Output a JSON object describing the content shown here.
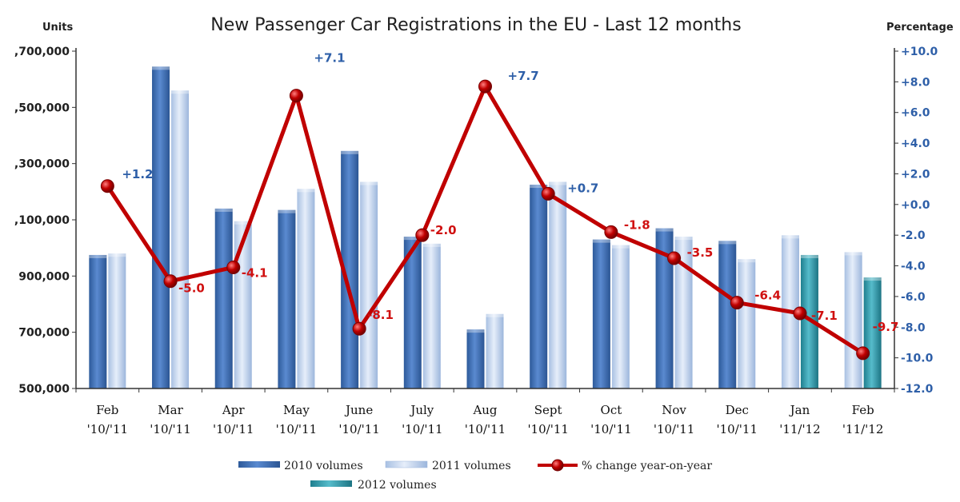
{
  "chart_data": {
    "type": "bar",
    "title": "New Passenger Car Registrations in the EU - Last 12 months",
    "ylabel": "Units",
    "y2label": "Percentage",
    "ylim": [
      500000,
      1700000
    ],
    "y2lim": [
      -12,
      10
    ],
    "yticks": [
      "500,000",
      "700,000",
      "900,000",
      ",100,000",
      ",300,000",
      ",500,000",
      ",700,000"
    ],
    "y2ticks": [
      "-12.0",
      "-10.0",
      "-8.0",
      "-6.0",
      "-4.0",
      "-2.0",
      "+0.0",
      "+2.0",
      "+4.0",
      "+6.0",
      "+8.0",
      "+10.0"
    ],
    "categories": [
      {
        "month": "Feb",
        "years": "'10/'11"
      },
      {
        "month": "Mar",
        "years": "'10/'11"
      },
      {
        "month": "Apr",
        "years": "'10/'11"
      },
      {
        "month": "May",
        "years": "'10/'11"
      },
      {
        "month": "June",
        "years": "'10/'11"
      },
      {
        "month": "July",
        "years": "'10/'11"
      },
      {
        "month": "Aug",
        "years": "'10/'11"
      },
      {
        "month": "Sept",
        "years": "'10/'11"
      },
      {
        "month": "Oct",
        "years": "'10/'11"
      },
      {
        "month": "Nov",
        "years": "'10/'11"
      },
      {
        "month": "Dec",
        "years": "'10/'11"
      },
      {
        "month": "Jan",
        "years": "'11/'12"
      },
      {
        "month": "Feb",
        "years": "'11/'12"
      }
    ],
    "series": [
      {
        "name": "2010 volumes",
        "values": [
          975000,
          1645000,
          1140000,
          1135000,
          1345000,
          1040000,
          710000,
          1225000,
          1030000,
          1070000,
          1025000,
          null,
          null
        ]
      },
      {
        "name": "2011 volumes",
        "values": [
          980000,
          1560000,
          1095000,
          1210000,
          1235000,
          1015000,
          765000,
          1235000,
          1010000,
          1040000,
          960000,
          1045000,
          985000
        ]
      },
      {
        "name": "2012 volumes",
        "values": [
          null,
          null,
          null,
          null,
          null,
          null,
          null,
          null,
          null,
          null,
          null,
          975000,
          895000
        ]
      },
      {
        "name": "% change year-on-year",
        "values": [
          1.2,
          -5.0,
          -4.1,
          7.1,
          -8.1,
          -2.0,
          7.7,
          0.7,
          -1.8,
          -3.5,
          -6.4,
          -7.1,
          -9.7
        ]
      }
    ],
    "data_labels": [
      "+1.2",
      "-5.0",
      "-4.1",
      "+7.1",
      "-8.1",
      "-2.0",
      "+7.7",
      "+0.7",
      "-1.8",
      "-3.5",
      "-6.4",
      "-7.1",
      "-9.7"
    ],
    "legend": {
      "position": "bottom",
      "items": [
        "2010 volumes",
        "2011 volumes",
        "% change year-on-year",
        "2012 volumes"
      ]
    },
    "colors": {
      "v2010": "#3d6fb5",
      "v2011": "#c0d2ec",
      "v2012": "#3aa0b0",
      "line": "#c00000",
      "pos_label": "#2e5fa8",
      "neg_label": "#d01010",
      "axis": "#333333",
      "grid": "#d0d0d0"
    }
  }
}
